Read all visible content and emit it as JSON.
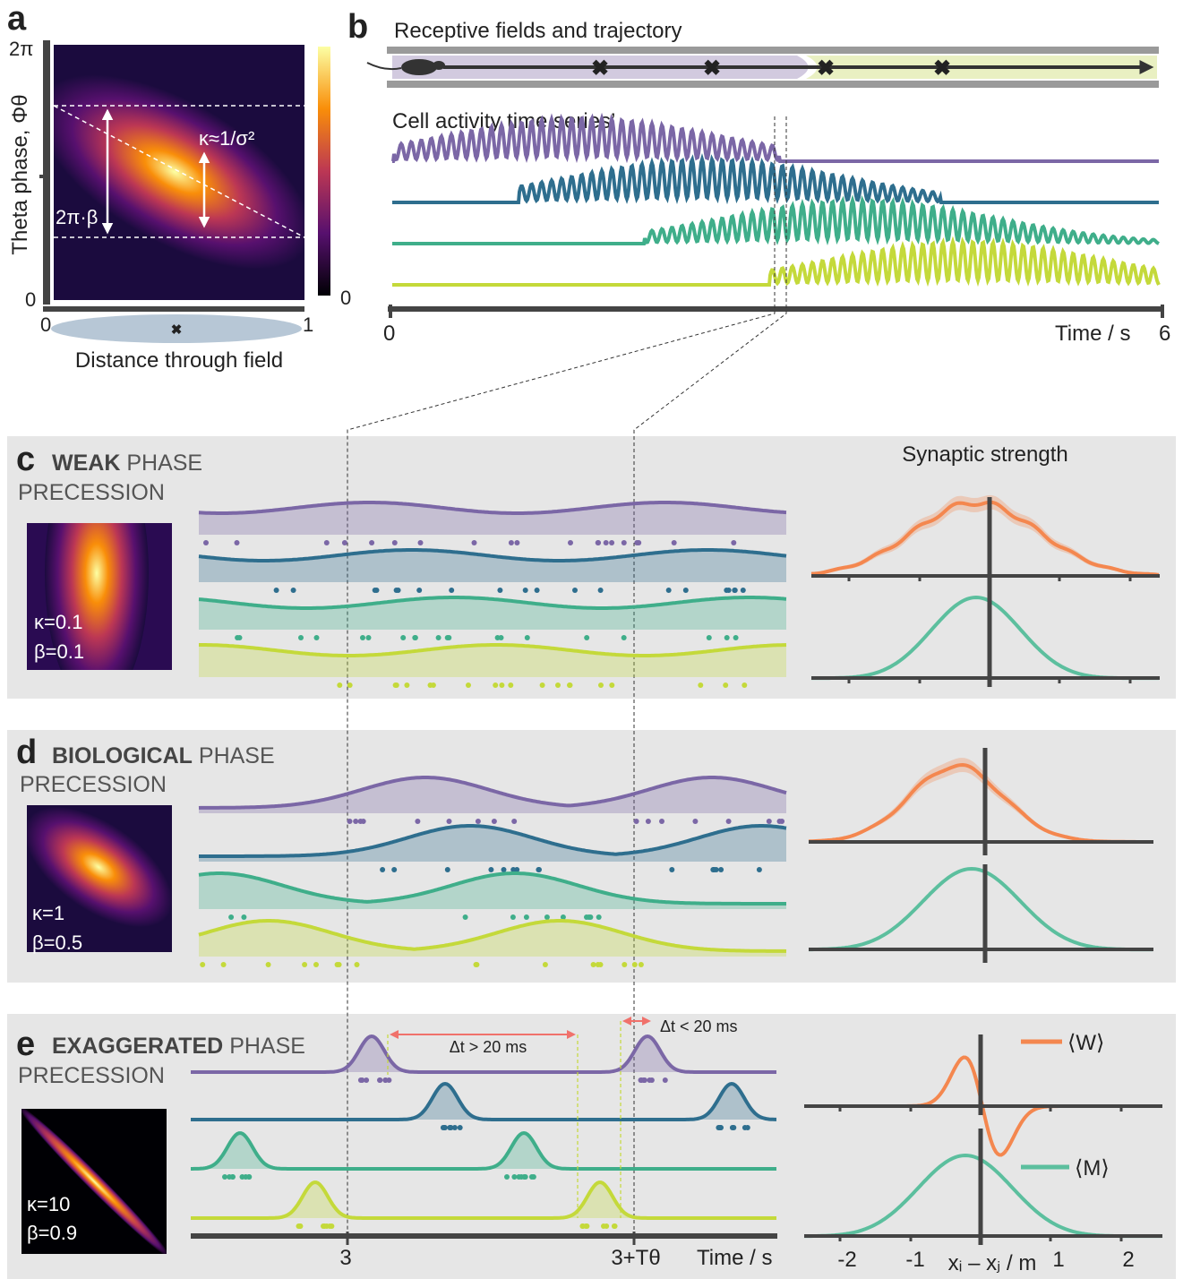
{
  "panel_a": {
    "label": "a",
    "y_axis_label": "Theta phase, Φθ",
    "y_ticks": [
      "0",
      "2π"
    ],
    "x_ticks": [
      "0",
      "1"
    ],
    "x_axis_label": "Distance through field",
    "colorbar_ticks": [
      "0"
    ],
    "annotations": [
      "κ≈1/σ²",
      "2π·β"
    ]
  },
  "panel_b": {
    "label": "b",
    "title": "Receptive fields and trajectory",
    "subtitle": "Cell activity time series’",
    "x_axis_label": "Time / s",
    "x_ticks": [
      "0",
      "6"
    ]
  },
  "panel_c": {
    "label": "c",
    "title_bold": "WEAK",
    "title_rest": "PHASE",
    "title_line2": "PRECESSION",
    "kappa": "κ=0.1",
    "beta": "β=0.1",
    "right_title": "Synaptic strength"
  },
  "panel_d": {
    "label": "d",
    "title_bold": "BIOLOGICAL",
    "title_rest": "PHASE",
    "title_line2": "PRECESSION",
    "kappa": "κ=1",
    "beta": "β=0.5"
  },
  "panel_e": {
    "label": "e",
    "title_bold": "EXAGGERATED",
    "title_rest": "PHASE",
    "title_line2": "PRECESSION",
    "kappa": "κ=10",
    "beta": "β=0.9",
    "delta_long": "Δt > 20 ms",
    "delta_short": "Δt < 20 ms",
    "legend": [
      "⟨W⟩",
      "⟨M⟩"
    ],
    "x_ticks": [
      "3",
      "3+Tθ"
    ],
    "x_axis_label": "Time / s",
    "right_x_ticks": [
      "-2",
      "-1",
      "1",
      "2"
    ],
    "right_x_axis_label": "xᵢ – xⱼ / m"
  }
}
